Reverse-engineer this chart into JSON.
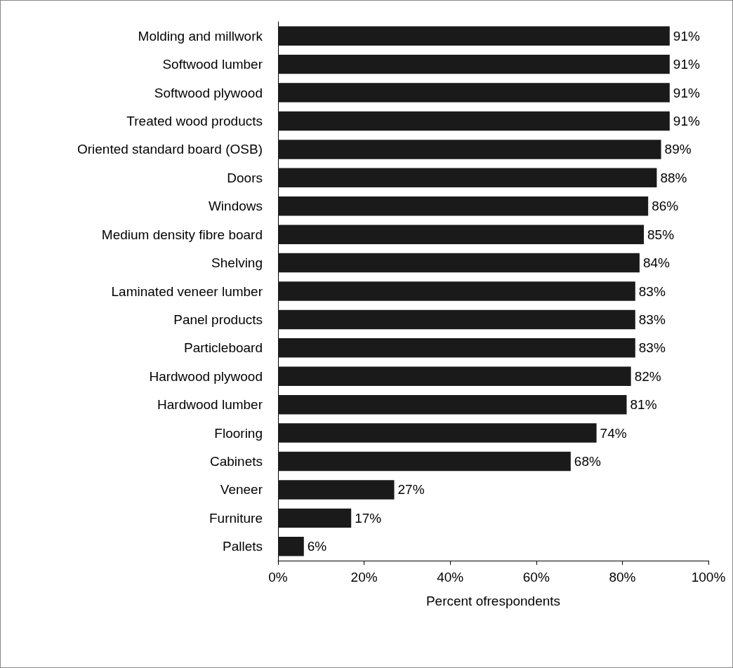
{
  "chart_data": {
    "type": "bar",
    "orientation": "horizontal",
    "xlabel": "Percent ofrespondents",
    "categories": [
      "Molding and millwork",
      "Softwood lumber",
      "Softwood plywood",
      "Treated wood products",
      "Oriented standard board (OSB)",
      "Doors",
      "Windows",
      "Medium density fibre board",
      "Shelving",
      "Laminated veneer lumber",
      "Panel products",
      "Particleboard",
      "Hardwood plywood",
      "Hardwood lumber",
      "Flooring",
      "Cabinets",
      "Veneer",
      "Furniture",
      "Pallets"
    ],
    "values": [
      91,
      91,
      91,
      91,
      89,
      88,
      86,
      85,
      84,
      83,
      83,
      83,
      82,
      81,
      74,
      68,
      27,
      17,
      6
    ],
    "value_labels": [
      "91%",
      "91%",
      "91%",
      "91%",
      "89%",
      "88%",
      "86%",
      "85%",
      "84%",
      "83%",
      "83%",
      "83%",
      "82%",
      "81%",
      "74%",
      "68%",
      "27%",
      "17%",
      "6%"
    ],
    "color": "#1a1a1a",
    "xlim": [
      0,
      100
    ],
    "xticks": [
      {
        "value": 0,
        "label": "0%"
      },
      {
        "value": 20,
        "label": "20%"
      },
      {
        "value": 40,
        "label": "40%"
      },
      {
        "value": 60,
        "label": "60%"
      },
      {
        "value": 80,
        "label": "80%"
      },
      {
        "value": 100,
        "label": "100%"
      }
    ],
    "grid": false
  }
}
